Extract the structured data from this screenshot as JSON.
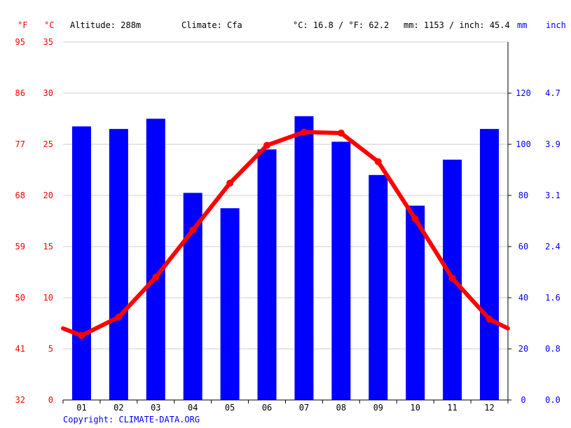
{
  "header": {
    "unit_f": "°F",
    "unit_c": "°C",
    "altitude": "Altitude: 288m",
    "climate": "Climate: Cfa",
    "avg_temp": "°C: 16.8 / °F: 62.2",
    "precip_total": "mm: 1153 / inch: 45.4",
    "unit_mm": "mm",
    "unit_inch": "inch"
  },
  "footer": {
    "copyright": "Copyright: CLIMATE-DATA.ORG"
  },
  "colors": {
    "temperature": "#ff0000",
    "precipitation": "#0000ff",
    "grid": "#cccccc"
  },
  "chart_data": {
    "type": "bar",
    "categories": [
      "01",
      "02",
      "03",
      "04",
      "05",
      "06",
      "07",
      "08",
      "09",
      "10",
      "11",
      "12"
    ],
    "series": [
      {
        "type": "bar",
        "axis": "mm",
        "values": [
          107,
          106,
          110,
          81,
          75,
          98,
          111,
          101,
          88,
          76,
          94,
          106
        ]
      },
      {
        "type": "line",
        "axis": "°C",
        "values": [
          6.3,
          8.1,
          12.0,
          16.6,
          21.2,
          24.9,
          26.2,
          26.1,
          23.3,
          17.7,
          11.9,
          7.9
        ]
      }
    ],
    "temp_left_edge": 7.0,
    "temp_right_edge": 7.0,
    "celsius_axis": {
      "ticks": [
        0,
        5,
        10,
        15,
        20,
        25,
        30,
        35
      ],
      "ylim": [
        0,
        35
      ]
    },
    "fahrenheit_axis": {
      "ticks": [
        32,
        41,
        50,
        59,
        68,
        77,
        86,
        95
      ]
    },
    "mm_axis": {
      "ticks": [
        0,
        20,
        40,
        60,
        80,
        100,
        120
      ],
      "ylim": [
        0,
        140
      ]
    },
    "inch_axis": {
      "ticks": [
        "0.0",
        "0.8",
        "1.6",
        "2.4",
        "3.1",
        "3.9",
        "4.7"
      ]
    },
    "grid": true
  }
}
